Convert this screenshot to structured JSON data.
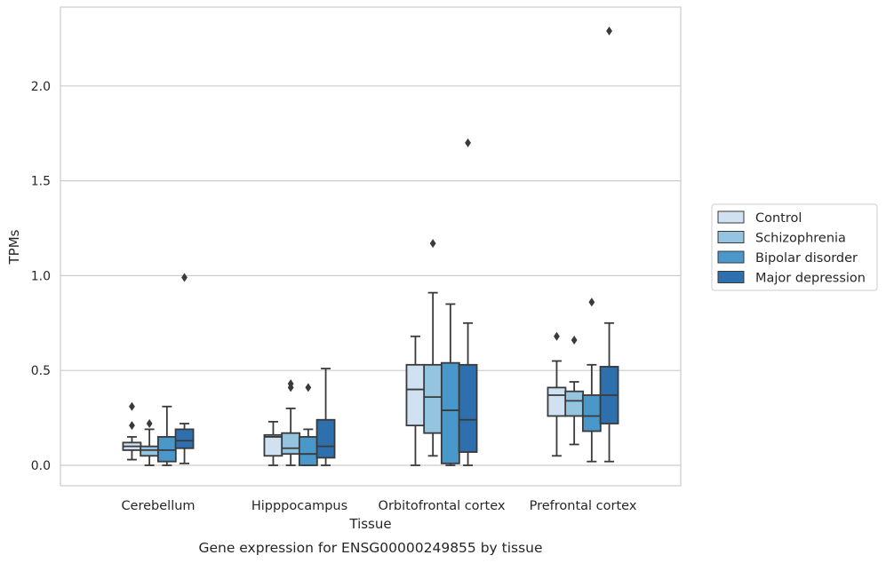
{
  "chart_data": {
    "type": "box",
    "xlabel": "Tissue",
    "ylabel": "TPMs",
    "caption": "Gene expression for ENSG00000249855 by tissue",
    "ylim": [
      -0.11,
      2.4
    ],
    "yticks": [
      0.0,
      0.5,
      1.0,
      1.5,
      2.0
    ],
    "ytick_labels": [
      "0.0",
      "0.5",
      "1.0",
      "1.5",
      "2.0"
    ],
    "grid": "horizontal",
    "legend_position": "right",
    "categories": [
      "Cerebellum",
      "Hipppocampus",
      "Orbitofrontal cortex",
      "Prefrontal cortex"
    ],
    "series": [
      {
        "name": "Control",
        "color": "#d0e1f2",
        "boxes": [
          {
            "whislo": 0.03,
            "q1": 0.08,
            "med": 0.1,
            "q3": 0.12,
            "whishi": 0.15,
            "fliers": [
              0.21,
              0.31
            ]
          },
          {
            "whislo": 0.0,
            "q1": 0.05,
            "med": 0.15,
            "q3": 0.16,
            "whishi": 0.23,
            "fliers": []
          },
          {
            "whislo": 0.0,
            "q1": 0.21,
            "med": 0.4,
            "q3": 0.53,
            "whishi": 0.68,
            "fliers": []
          },
          {
            "whislo": 0.05,
            "q1": 0.26,
            "med": 0.37,
            "q3": 0.41,
            "whishi": 0.55,
            "fliers": [
              0.68
            ]
          }
        ]
      },
      {
        "name": "Schizophrenia",
        "color": "#94c4df",
        "boxes": [
          {
            "whislo": 0.0,
            "q1": 0.05,
            "med": 0.08,
            "q3": 0.1,
            "whishi": 0.19,
            "fliers": [
              0.22
            ]
          },
          {
            "whislo": 0.0,
            "q1": 0.06,
            "med": 0.09,
            "q3": 0.17,
            "whishi": 0.3,
            "fliers": [
              0.41,
              0.43
            ]
          },
          {
            "whislo": 0.05,
            "q1": 0.17,
            "med": 0.36,
            "q3": 0.53,
            "whishi": 0.91,
            "fliers": [
              1.17
            ]
          },
          {
            "whislo": 0.11,
            "q1": 0.26,
            "med": 0.34,
            "q3": 0.39,
            "whishi": 0.44,
            "fliers": [
              0.66
            ]
          }
        ]
      },
      {
        "name": "Bipolar disorder",
        "color": "#4a98c9",
        "boxes": [
          {
            "whislo": 0.0,
            "q1": 0.02,
            "med": 0.08,
            "q3": 0.15,
            "whishi": 0.31,
            "fliers": []
          },
          {
            "whislo": 0.0,
            "q1": 0.0,
            "med": 0.06,
            "q3": 0.15,
            "whishi": 0.19,
            "fliers": [
              0.41
            ]
          },
          {
            "whislo": 0.0,
            "q1": 0.01,
            "med": 0.29,
            "q3": 0.54,
            "whishi": 0.85,
            "fliers": []
          },
          {
            "whislo": 0.02,
            "q1": 0.18,
            "med": 0.26,
            "q3": 0.37,
            "whishi": 0.53,
            "fliers": [
              0.86
            ]
          }
        ]
      },
      {
        "name": "Major depression",
        "color": "#2e6fae",
        "boxes": [
          {
            "whislo": 0.01,
            "q1": 0.09,
            "med": 0.13,
            "q3": 0.19,
            "whishi": 0.22,
            "fliers": [
              0.99
            ]
          },
          {
            "whislo": 0.0,
            "q1": 0.04,
            "med": 0.1,
            "q3": 0.24,
            "whishi": 0.51,
            "fliers": []
          },
          {
            "whislo": 0.0,
            "q1": 0.07,
            "med": 0.24,
            "q3": 0.53,
            "whishi": 0.75,
            "fliers": [
              1.7
            ]
          },
          {
            "whislo": 0.02,
            "q1": 0.22,
            "med": 0.37,
            "q3": 0.52,
            "whishi": 0.75,
            "fliers": [
              2.29
            ]
          }
        ]
      }
    ]
  }
}
